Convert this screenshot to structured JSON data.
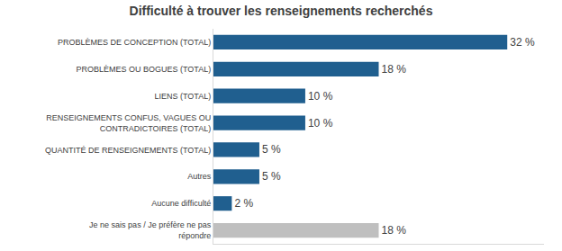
{
  "chart_data": {
    "type": "bar",
    "title": "Difficulté à trouver les renseignements recherchés",
    "orientation": "horizontal",
    "categories": [
      "PROBLÈMES DE CONCEPTION (TOTAL)",
      "PROBLÈMES OU BOGUES (TOTAL)",
      "LIENS (TOTAL)",
      "RENSEIGNEMENTS CONFUS, VAGUES OU CONTRADICTOIRES (TOTAL)",
      "QUANTITÉ DE RENSEIGNEMENTS (TOTAL)",
      "Autres",
      "Aucune difficulté",
      "Je ne sais pas / Je préfère ne pas répondre"
    ],
    "values": [
      32,
      18,
      10,
      10,
      5,
      5,
      2,
      18
    ],
    "value_labels": [
      "32 %",
      "18 %",
      "10 %",
      "10 %",
      "5 %",
      "5 %",
      "2 %",
      "18 %"
    ],
    "colors": [
      "#205f8f",
      "#205f8f",
      "#205f8f",
      "#205f8f",
      "#205f8f",
      "#205f8f",
      "#205f8f",
      "#bfbfbf"
    ],
    "xlim": [
      0,
      36
    ],
    "xticks": [],
    "grid": false,
    "data_labels": true,
    "tick_labels": "y"
  }
}
